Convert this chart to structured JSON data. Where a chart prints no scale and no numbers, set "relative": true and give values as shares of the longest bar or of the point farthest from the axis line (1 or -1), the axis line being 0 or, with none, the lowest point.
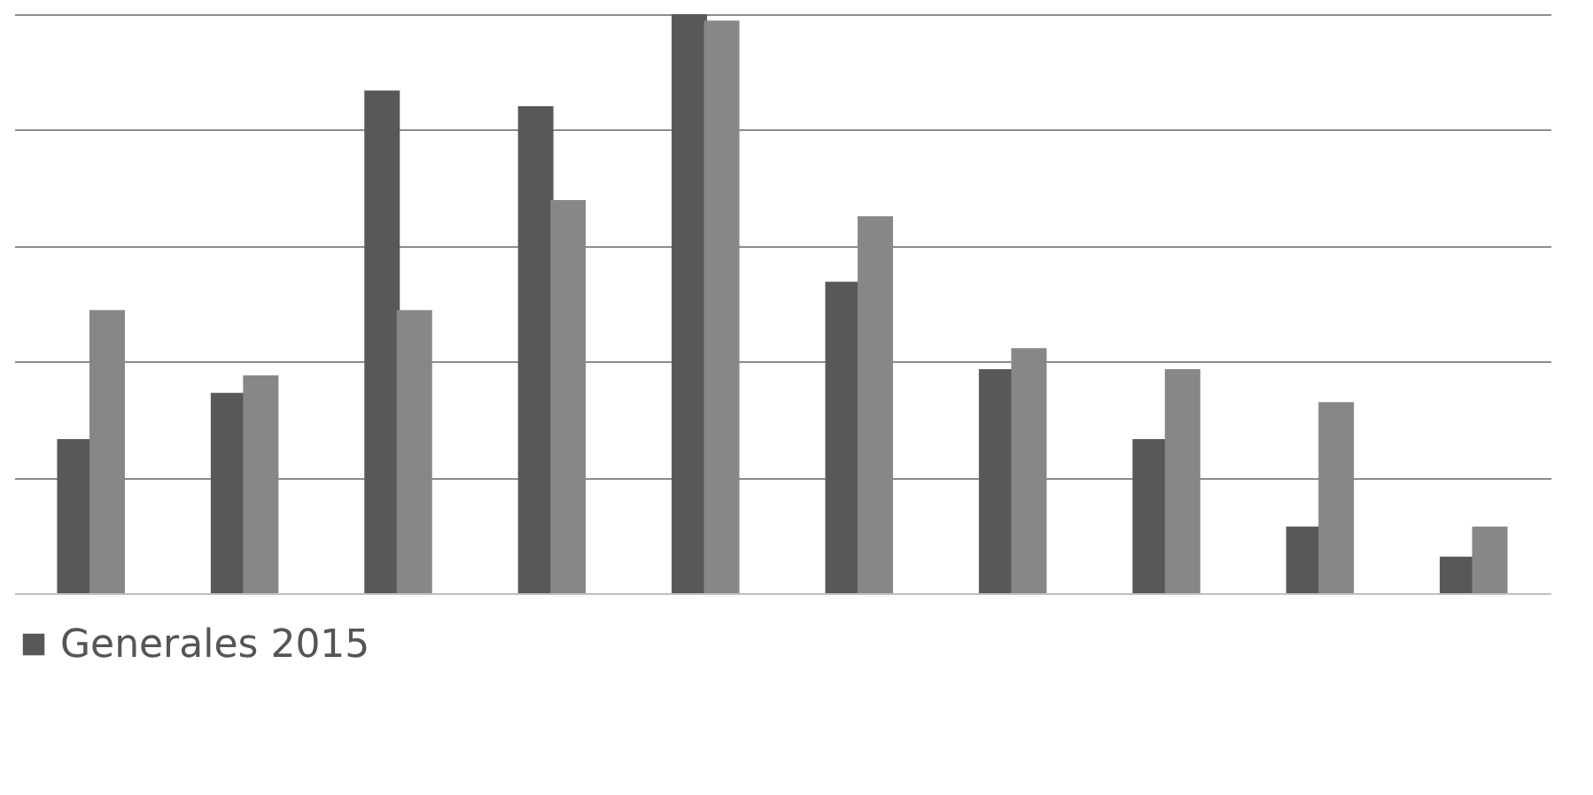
{
  "chart_data": {
    "type": "bar",
    "relative": true,
    "categories": [
      null,
      null,
      null,
      null,
      null,
      null,
      null,
      null,
      null,
      null
    ],
    "series": [
      {
        "name": "Generales 2015",
        "color": "#58585a",
        "values": [
          0.266,
          0.346,
          0.868,
          0.841,
          1,
          0.538,
          0.387,
          0.266,
          0.115,
          0.063
        ]
      },
      {
        "color": "#87878a",
        "values": [
          0.489,
          0.376,
          0.489,
          0.679,
          0.989,
          0.651,
          0.423,
          0.387,
          0.33,
          0.115
        ]
      }
    ],
    "grid": "y",
    "legend": "bottom"
  }
}
